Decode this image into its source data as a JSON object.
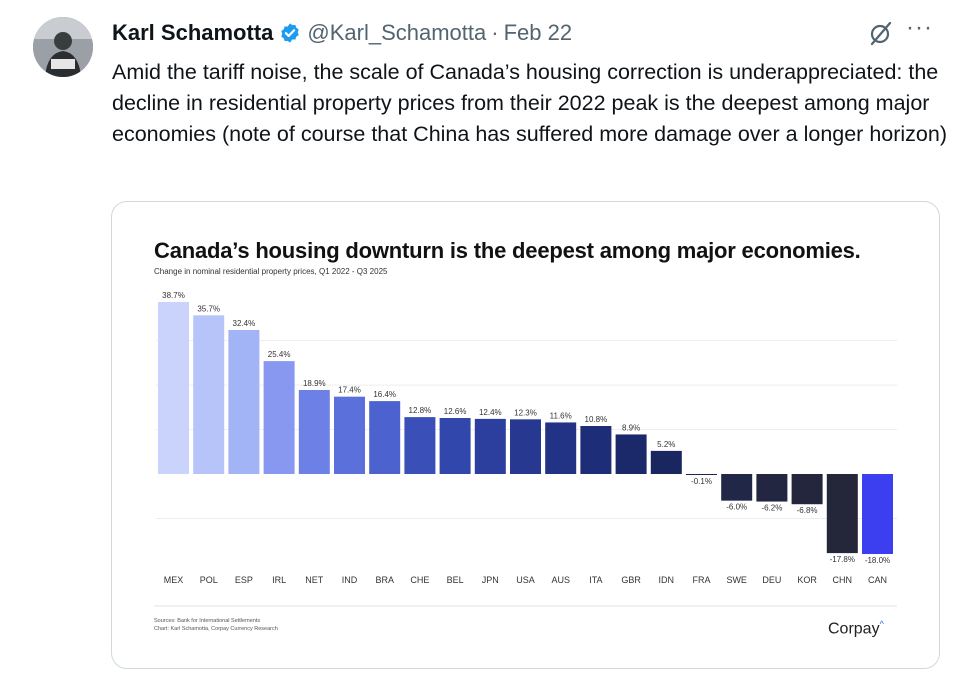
{
  "tweet": {
    "author_name": "Karl Schamotta",
    "handle": "@Karl_Schamotta",
    "separator": "·",
    "date": "Feb 22",
    "more_label": "···",
    "text": "Amid the tariff noise, the scale of Canada’s housing correction is underappreciated: the decline in residential property prices from their 2022 peak is the deepest among major economies (note of course that China has suffered more damage over a longer horizon)"
  },
  "card": {
    "source_line1": "Sources: Bank for International Settlements",
    "source_line2": "Chart: Karl Schamotta, Corpay Currency Research",
    "logo_text": "Corpay",
    "logo_mark": "^"
  },
  "colors": {
    "verified": "#1d9bf0",
    "text_secondary": "#536471",
    "can_bar": "#3b3ff0"
  },
  "chart_data": {
    "type": "bar",
    "title": "Canada’s housing downturn is the deepest among major economies.",
    "subtitle": "Change in nominal residential property prices, Q1 2022 - Q3 2025",
    "categories": [
      "MEX",
      "POL",
      "ESP",
      "IRL",
      "NET",
      "IND",
      "BRA",
      "CHE",
      "BEL",
      "JPN",
      "USA",
      "AUS",
      "ITA",
      "GBR",
      "IDN",
      "FRA",
      "SWE",
      "DEU",
      "KOR",
      "CHN",
      "CAN"
    ],
    "values": [
      38.7,
      35.7,
      32.4,
      25.4,
      18.9,
      17.4,
      16.4,
      12.8,
      12.6,
      12.4,
      12.3,
      11.6,
      10.8,
      8.9,
      5.2,
      -0.1,
      -6.0,
      -6.2,
      -6.8,
      -17.8,
      -18.0
    ],
    "labels": [
      "38.7%",
      "35.7%",
      "32.4%",
      "25.4%",
      "18.9%",
      "17.4%",
      "16.4%",
      "12.8%",
      "12.6%",
      "12.4%",
      "12.3%",
      "11.6%",
      "10.8%",
      "8.9%",
      "5.2%",
      "-0.1%",
      "-6.0%",
      "-6.2%",
      "-6.8%",
      "-17.8%",
      "-18.0%"
    ],
    "colors": [
      "#c9d3fb",
      "#b7c4f9",
      "#a2b3f6",
      "#8898f0",
      "#6d80e6",
      "#5c70dc",
      "#4c62cf",
      "#3a50b8",
      "#3247ab",
      "#2c3f9e",
      "#273891",
      "#223285",
      "#1e2d78",
      "#1b296b",
      "#19265f",
      "#1f2650",
      "#212747",
      "#222641",
      "#23263d",
      "#242639",
      "#3b3ff0"
    ],
    "ylim": [
      -18.0,
      38.7
    ],
    "xlabel": "",
    "ylabel": "",
    "grid": true
  }
}
